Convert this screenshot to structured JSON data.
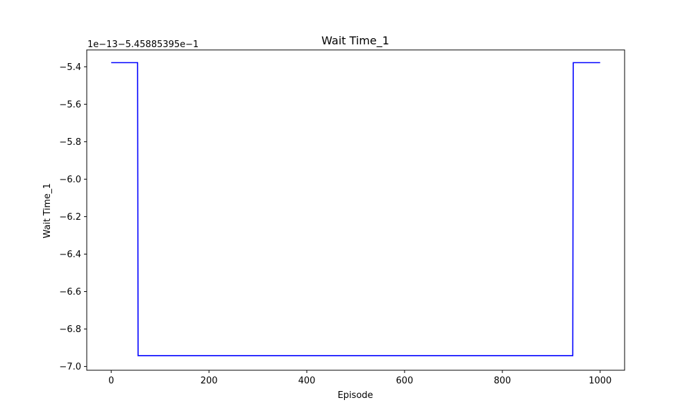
{
  "chart_data": {
    "type": "line",
    "title": "Wait Time_1",
    "xlabel": "Episode",
    "ylabel": "Wait Time_1",
    "offset_label": "1e−13−5.45885395e−1",
    "xlim": [
      -50,
      1050
    ],
    "ylim": [
      -7.02,
      -5.31
    ],
    "x_ticks": [
      0,
      200,
      400,
      600,
      800,
      1000
    ],
    "y_ticks": [
      -7.0,
      -6.8,
      -6.6,
      -6.4,
      -6.2,
      -6.0,
      -5.8,
      -5.6,
      -5.4
    ],
    "x_tick_labels": [
      "0",
      "200",
      "400",
      "600",
      "800",
      "1000"
    ],
    "y_tick_labels": [
      "−7.0",
      "−6.8",
      "−6.6",
      "−6.4",
      "−6.2",
      "−6.0",
      "−5.8",
      "−5.6",
      "−5.4"
    ],
    "grid": false,
    "series": [
      {
        "color": "#0000ff",
        "points": [
          [
            0,
            -5.378
          ],
          [
            54,
            -5.378
          ],
          [
            55,
            -6.942
          ],
          [
            944,
            -6.942
          ],
          [
            945,
            -5.378
          ],
          [
            1000,
            -5.378
          ]
        ]
      }
    ]
  }
}
